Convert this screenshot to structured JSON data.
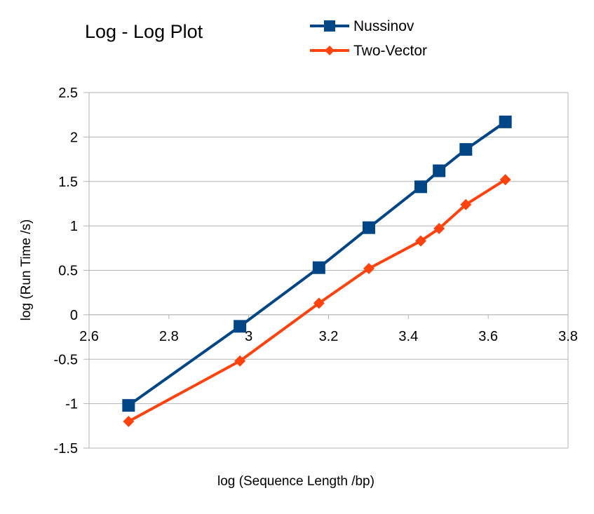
{
  "chart_data": {
    "type": "line",
    "title": "Log - Log Plot",
    "xlabel": "log (Sequence Length /bp)",
    "ylabel": "log (Run Time /s)",
    "xlim": [
      2.6,
      3.8
    ],
    "ylim": [
      -1.5,
      2.5
    ],
    "x_ticks": [
      "2.6",
      "2.8",
      "3",
      "3.2",
      "3.4",
      "3.6",
      "3.8"
    ],
    "y_ticks": [
      "2.5",
      "2",
      "1.5",
      "1",
      "0.5",
      "0",
      "-0.5",
      "-1",
      "-1.5"
    ],
    "grid": "horizontal",
    "legend_position": "top-right",
    "series": [
      {
        "name": "Nussinov",
        "color": "#004586",
        "marker": "square",
        "x": [
          2.699,
          2.978,
          3.176,
          3.301,
          3.431,
          3.477,
          3.544,
          3.643
        ],
        "y": [
          -1.02,
          -0.13,
          0.53,
          0.98,
          1.44,
          1.62,
          1.86,
          2.17
        ]
      },
      {
        "name": "Two-Vector",
        "color": "#ff420e",
        "marker": "diamond",
        "x": [
          2.699,
          2.978,
          3.176,
          3.301,
          3.431,
          3.477,
          3.544,
          3.643
        ],
        "y": [
          -1.2,
          -0.52,
          0.13,
          0.52,
          0.83,
          0.97,
          1.24,
          1.52
        ]
      }
    ]
  }
}
